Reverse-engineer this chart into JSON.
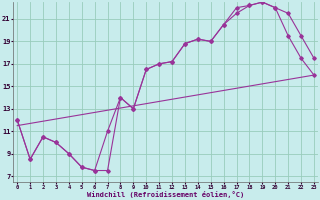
{
  "background_color": "#c8ecec",
  "grid_color": "#99ccbb",
  "line_color": "#993399",
  "xlim_min": 0,
  "xlim_max": 23,
  "ylim_min": 6.5,
  "ylim_max": 22.5,
  "xticks": [
    0,
    1,
    2,
    3,
    4,
    5,
    6,
    7,
    8,
    9,
    10,
    11,
    12,
    13,
    14,
    15,
    16,
    17,
    18,
    19,
    20,
    21,
    22,
    23
  ],
  "yticks": [
    7,
    9,
    11,
    13,
    15,
    17,
    19,
    21
  ],
  "xlabel": "Windchill (Refroidissement éolien,°C)",
  "line1_x": [
    0,
    1,
    2,
    3,
    4,
    5,
    6,
    7,
    8,
    9,
    10,
    11,
    12,
    13,
    14,
    15,
    16,
    17,
    18,
    19,
    20,
    21,
    22,
    23
  ],
  "line1_y": [
    12.0,
    8.5,
    10.5,
    10.0,
    9.0,
    7.8,
    7.5,
    11.0,
    14.0,
    13.0,
    16.5,
    17.0,
    17.2,
    18.8,
    19.2,
    19.0,
    20.5,
    21.5,
    22.2,
    22.5,
    22.0,
    21.5,
    19.5,
    17.5
  ],
  "line2_x": [
    0,
    1,
    2,
    3,
    4,
    5,
    6,
    7,
    8,
    9,
    10,
    11,
    12,
    13,
    14,
    15,
    16,
    17,
    18,
    19,
    20,
    21,
    22,
    23
  ],
  "line2_y": [
    12.0,
    8.5,
    10.5,
    10.0,
    9.0,
    7.8,
    7.5,
    7.5,
    14.0,
    13.0,
    16.5,
    17.0,
    17.2,
    18.8,
    19.2,
    19.0,
    20.5,
    22.0,
    22.2,
    22.5,
    22.0,
    19.5,
    17.5,
    16.0
  ],
  "line3_x": [
    0,
    23
  ],
  "line3_y": [
    11.5,
    16.0
  ]
}
